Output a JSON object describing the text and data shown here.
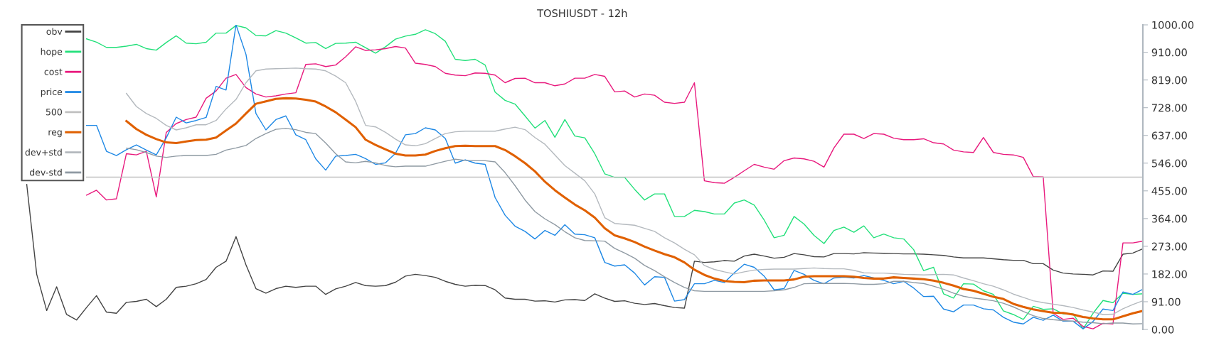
{
  "chart_data": {
    "type": "line",
    "title": "TOSHIUSDT - 12h",
    "categories": [
      null,
      null,
      null,
      null,
      null,
      null,
      null,
      null,
      null,
      null,
      null,
      null,
      null,
      null,
      null,
      null,
      null,
      null,
      null,
      null,
      null,
      null,
      null,
      null,
      null,
      null,
      null,
      null,
      null,
      null,
      null,
      null,
      null,
      null,
      null,
      null,
      null,
      null,
      null,
      null,
      null,
      null,
      null,
      null,
      null,
      null,
      null,
      null,
      null,
      null,
      null,
      null,
      null,
      null,
      null,
      null,
      null,
      null,
      null,
      null,
      null,
      null,
      null,
      null,
      null,
      null,
      null,
      null,
      null,
      null,
      null,
      null,
      null,
      null,
      null,
      null,
      null,
      null,
      null,
      null,
      null,
      null,
      null,
      null,
      null,
      null,
      null,
      null,
      null,
      null,
      null,
      null,
      null,
      null,
      null,
      null,
      null,
      null,
      null,
      null,
      null,
      null,
      null,
      null,
      null,
      null,
      null,
      null,
      null,
      null,
      null,
      null,
      null
    ],
    "ylim": [
      0,
      1000
    ],
    "yticks": [
      {
        "value": 0,
        "label": "0.00"
      },
      {
        "value": 91,
        "label": "91.00"
      },
      {
        "value": 182,
        "label": "182.00"
      },
      {
        "value": 273,
        "label": "273.00"
      },
      {
        "value": 364,
        "label": "364.00"
      },
      {
        "value": 455,
        "label": "455.00"
      },
      {
        "value": 546,
        "label": "546.00"
      },
      {
        "value": 637,
        "label": "637.00"
      },
      {
        "value": 728,
        "label": "728.00"
      },
      {
        "value": 819,
        "label": "819.00"
      },
      {
        "value": 910,
        "label": "910.00"
      },
      {
        "value": 1000,
        "label": "1000.00"
      }
    ],
    "tick_labels": "y",
    "grid": false,
    "legend": "top left",
    "marker": "none",
    "line_style": "solid",
    "series": [
      {
        "name": "obv",
        "color": "#444444",
        "values": [
          476,
          181,
          62,
          140,
          49,
          31,
          72,
          111,
          57,
          53,
          89,
          92,
          99,
          75,
          99,
          138,
          142,
          150,
          164,
          204,
          224,
          305,
          212,
          134,
          119,
          134,
          142,
          138,
          142,
          142,
          115,
          133,
          142,
          154,
          144,
          142,
          144,
          155,
          175,
          181,
          177,
          171,
          158,
          148,
          142,
          145,
          144,
          130,
          103,
          99,
          99,
          93,
          94,
          90,
          97,
          98,
          95,
          117,
          103,
          92,
          94,
          86,
          82,
          85,
          78,
          72,
          70,
          224,
          220,
          222,
          226,
          224,
          241,
          247,
          241,
          234,
          237,
          249,
          245,
          239,
          238,
          249,
          249,
          248,
          252,
          251,
          250,
          249,
          248,
          248,
          247,
          245,
          243,
          238,
          235,
          235,
          235,
          232,
          229,
          227,
          227,
          216,
          216,
          195,
          185,
          182,
          181,
          179,
          192,
          191,
          247,
          251,
          265
        ]
      },
      {
        "name": "hope",
        "color": "#22e07a",
        "values": [
          null,
          null,
          null,
          null,
          null,
          null,
          954,
          943,
          926,
          926,
          930,
          936,
          922,
          917,
          942,
          964,
          940,
          938,
          943,
          973,
          973,
          998,
          990,
          965,
          964,
          981,
          973,
          957,
          940,
          942,
          922,
          939,
          940,
          943,
          925,
          907,
          928,
          953,
          963,
          969,
          984,
          971,
          946,
          887,
          883,
          887,
          868,
          779,
          752,
          740,
          701,
          661,
          686,
          631,
          689,
          635,
          629,
          577,
          511,
          499,
          499,
          460,
          425,
          445,
          445,
          371,
          371,
          391,
          387,
          379,
          379,
          415,
          425,
          408,
          359,
          301,
          309,
          371,
          346,
          309,
          282,
          325,
          336,
          319,
          340,
          301,
          313,
          301,
          297,
          262,
          193,
          204,
          117,
          103,
          150,
          149,
          127,
          115,
          61,
          49,
          33,
          76,
          66,
          68,
          51,
          51,
          2,
          53,
          95,
          88,
          119,
          115,
          117
        ]
      },
      {
        "name": "cost",
        "color": "#e8197d",
        "values": [
          null,
          null,
          null,
          null,
          null,
          null,
          441,
          457,
          425,
          429,
          577,
          573,
          585,
          435,
          647,
          676,
          689,
          697,
          759,
          783,
          825,
          837,
          794,
          773,
          763,
          767,
          773,
          777,
          870,
          872,
          863,
          868,
          895,
          928,
          916,
          918,
          922,
          929,
          924,
          874,
          870,
          863,
          841,
          835,
          833,
          842,
          841,
          835,
          810,
          824,
          825,
          810,
          810,
          800,
          806,
          825,
          825,
          837,
          831,
          780,
          783,
          763,
          773,
          769,
          746,
          742,
          746,
          810,
          488,
          482,
          480,
          499,
          521,
          542,
          533,
          526,
          554,
          563,
          560,
          552,
          533,
          596,
          641,
          641,
          627,
          643,
          641,
          628,
          623,
          623,
          626,
          613,
          609,
          589,
          583,
          581,
          630,
          581,
          575,
          573,
          565,
          502,
          501,
          53,
          33,
          37,
          10,
          2,
          20,
          18,
          284,
          284,
          290
        ]
      },
      {
        "name": "price",
        "color": "#1e88e5",
        "values": [
          null,
          null,
          null,
          null,
          null,
          null,
          670,
          670,
          585,
          571,
          590,
          606,
          589,
          573,
          629,
          697,
          678,
          686,
          696,
          798,
          786,
          1000,
          903,
          709,
          655,
          689,
          701,
          639,
          623,
          560,
          523,
          569,
          571,
          575,
          561,
          542,
          547,
          578,
          639,
          643,
          662,
          655,
          627,
          546,
          557,
          546,
          542,
          433,
          375,
          339,
          322,
          297,
          325,
          309,
          344,
          313,
          311,
          301,
          220,
          208,
          212,
          185,
          146,
          173,
          171,
          93,
          98,
          150,
          150,
          161,
          154,
          186,
          214,
          204,
          175,
          130,
          134,
          194,
          181,
          161,
          150,
          169,
          172,
          169,
          177,
          169,
          161,
          150,
          158,
          136,
          108,
          109,
          67,
          58,
          80,
          80,
          68,
          64,
          40,
          24,
          18,
          40,
          30,
          47,
          27,
          27,
          2,
          26,
          67,
          62,
          123,
          115,
          132
        ]
      },
      {
        "name": "500",
        "color": "#c0c0c0",
        "values": [
          null,
          null,
          null,
          null,
          null,
          null,
          500,
          500,
          500,
          500,
          500,
          500,
          500,
          500,
          500,
          500,
          500,
          500,
          500,
          500,
          500,
          500,
          500,
          500,
          500,
          500,
          500,
          500,
          500,
          500,
          500,
          500,
          500,
          500,
          500,
          500,
          500,
          500,
          500,
          500,
          500,
          500,
          500,
          500,
          500,
          500,
          500,
          500,
          500,
          500,
          500,
          500,
          500,
          500,
          500,
          500,
          500,
          500,
          500,
          500,
          500,
          500,
          500,
          500,
          500,
          500,
          500,
          500,
          500,
          500,
          500,
          500,
          500,
          500,
          500,
          500,
          500,
          500,
          500,
          500,
          500,
          500,
          500,
          500,
          500,
          500,
          500,
          500,
          500,
          500,
          500,
          500,
          500,
          500,
          500,
          500,
          500,
          500,
          500,
          500,
          500,
          500,
          500,
          500,
          500,
          500,
          500,
          500,
          500,
          500,
          500,
          500,
          500
        ]
      },
      {
        "name": "reg",
        "color": "#e06000",
        "values": [
          null,
          null,
          null,
          null,
          null,
          null,
          null,
          null,
          null,
          null,
          684,
          658,
          639,
          625,
          614,
          612,
          617,
          622,
          623,
          630,
          653,
          676,
          709,
          741,
          749,
          757,
          759,
          758,
          754,
          748,
          732,
          713,
          689,
          664,
          623,
          606,
          591,
          577,
          571,
          571,
          574,
          586,
          595,
          602,
          603,
          602,
          602,
          602,
          589,
          569,
          546,
          519,
          485,
          457,
          433,
          410,
          391,
          367,
          332,
          309,
          299,
          287,
          272,
          259,
          247,
          237,
          220,
          196,
          179,
          167,
          159,
          156,
          155,
          160,
          161,
          161,
          161,
          164,
          173,
          175,
          175,
          175,
          175,
          173,
          169,
          167,
          167,
          171,
          169,
          167,
          165,
          160,
          153,
          144,
          133,
          127,
          117,
          107,
          100,
          84,
          74,
          66,
          60,
          55,
          54,
          49,
          41,
          36,
          33,
          33,
          43,
          53,
          61
        ]
      },
      {
        "name": "dev+std",
        "color": "#b4b9be",
        "values": [
          null,
          null,
          null,
          null,
          null,
          null,
          null,
          null,
          null,
          null,
          775,
          732,
          709,
          693,
          670,
          655,
          662,
          672,
          672,
          686,
          724,
          755,
          810,
          849,
          855,
          856,
          857,
          858,
          856,
          855,
          849,
          832,
          810,
          749,
          670,
          665,
          647,
          625,
          606,
          603,
          610,
          627,
          643,
          649,
          651,
          651,
          651,
          651,
          658,
          664,
          656,
          630,
          608,
          573,
          538,
          513,
          488,
          445,
          367,
          348,
          345,
          342,
          332,
          322,
          301,
          284,
          263,
          245,
          210,
          197,
          189,
          182,
          189,
          195,
          197,
          198,
          198,
          198,
          200,
          202,
          200,
          199,
          199,
          194,
          186,
          185,
          185,
          183,
          181,
          180,
          179,
          180,
          181,
          179,
          169,
          160,
          150,
          142,
          130,
          116,
          105,
          94,
          88,
          83,
          78,
          72,
          64,
          57,
          49,
          50,
          68,
          82,
          94
        ]
      },
      {
        "name": "dev-std",
        "color": "#8f9aa3",
        "values": [
          null,
          null,
          null,
          null,
          null,
          null,
          null,
          null,
          null,
          null,
          595,
          590,
          581,
          569,
          565,
          569,
          571,
          571,
          571,
          575,
          589,
          596,
          604,
          627,
          643,
          657,
          660,
          656,
          647,
          643,
          612,
          577,
          550,
          547,
          552,
          547,
          538,
          534,
          536,
          536,
          536,
          544,
          552,
          559,
          555,
          554,
          554,
          550,
          515,
          472,
          425,
          387,
          363,
          344,
          321,
          301,
          292,
          291,
          290,
          266,
          251,
          234,
          210,
          193,
          173,
          154,
          138,
          127,
          125,
          125,
          125,
          125,
          125,
          125,
          125,
          127,
          130,
          138,
          150,
          151,
          151,
          151,
          151,
          150,
          148,
          148,
          150,
          158,
          158,
          154,
          151,
          142,
          132,
          119,
          109,
          103,
          99,
          94,
          86,
          74,
          59,
          45,
          36,
          32,
          29,
          27,
          24,
          22,
          19,
          21,
          21,
          18,
          19
        ]
      }
    ]
  }
}
